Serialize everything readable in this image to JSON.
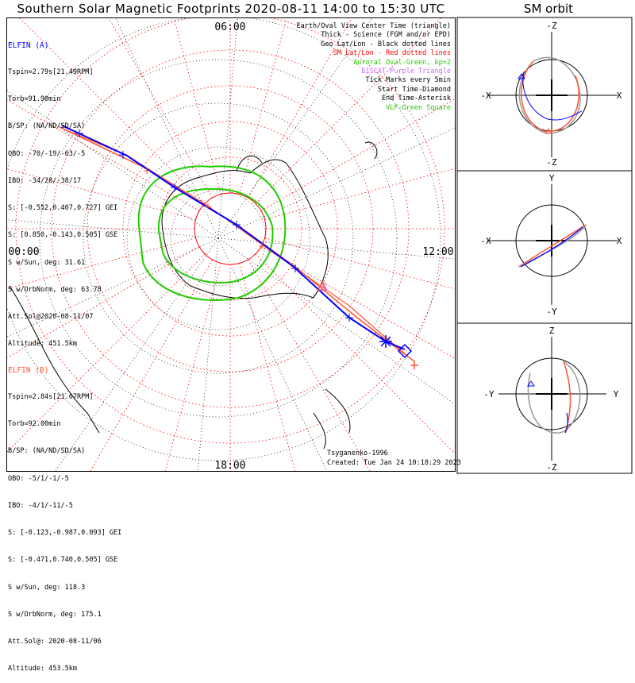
{
  "title": "Southern Solar Magnetic Footprints 2020-08-11 14:00 to 15:30 UTC",
  "sm_title": "SM orbit",
  "time_labels": {
    "top": "06:00",
    "left": "00:00",
    "right": "12:00",
    "bottom": "18:00"
  },
  "elfin_a": {
    "name": "ELFIN (A)",
    "lines": [
      "Tspin=2.79s[21.49RPM]",
      "Torb=91.90min",
      "B/SP: (NA/ND/SD/SA)",
      "OBO: -70/-19/-63/-5",
      "IBO: -34/28/-38/17",
      "S: [-0.552,0.407,0.727] GEI",
      "S: [0.850,-0.143,0.505] GSE",
      "S w/Sun, deg: 31.61",
      "S w/OrbNorm, deg: 63.78",
      "Att.Sol@2020-08-11/07",
      "Altitude: 451.5km"
    ]
  },
  "elfin_b": {
    "name": "ELFIN (B)",
    "lines": [
      "Tspin=2.84s[21.07RPM]",
      "Torb=92.00min",
      "B/SP: (NA/ND/SD/SA)",
      "OBO: -5/1/-1/-5",
      "IBO: -4/1/-11/-5",
      "S: [-0.123,-0.987,0.093] GEI",
      "S: [-0.471,0.740,0.505] GSE",
      "S w/Sun, deg: 118.3",
      "S w/OrbNorm, deg: 175.1",
      "Att.Sol@: 2020-08-11/06",
      "Altitude: 453.5km"
    ]
  },
  "legend": [
    {
      "text": "Earth/Oval View Center Time (triangle)",
      "color": "#000000"
    },
    {
      "text": "Thick - Science (FGM and/or EPD)",
      "color": "#000000"
    },
    {
      "text": "Geo Lat/Lon - Black dotted lines",
      "color": "#000000"
    },
    {
      "text": "SM Lat/Lon - Red dotted lines",
      "color": "#ff0000"
    },
    {
      "text": "Auroral Oval-Green, kp=2",
      "color": "#22cc00"
    },
    {
      "text": "EISCAT-Purple Triangle",
      "color": "#cc66ff"
    },
    {
      "text": "Tick Marks every 5min",
      "color": "#000000"
    },
    {
      "text": "Start Time-Diamond",
      "color": "#000000"
    },
    {
      "text": "End Time-Asterisk",
      "color": "#000000"
    },
    {
      "text": "VLF-Green Square",
      "color": "#22cc00"
    }
  ],
  "credits": {
    "model": "Tsyganenko-1996",
    "created": "Created: Tue Jan 24 10:18:29 2023"
  },
  "panels": [
    {
      "top": "-Z",
      "bottom": "-Z",
      "left": "-X",
      "right": "X"
    },
    {
      "top": "Y",
      "bottom": "-Y",
      "left": "-X",
      "right": "X"
    },
    {
      "top": "Z",
      "bottom": "-Z",
      "left": "-Y",
      "right": "Y"
    }
  ],
  "colors": {
    "elfin_a": "#0000ff",
    "elfin_b": "#ff5533",
    "oval": "#22cc00",
    "sm_grid": "#ff0000",
    "geo_grid": "#000000",
    "eiscat": "#cc66ff"
  }
}
